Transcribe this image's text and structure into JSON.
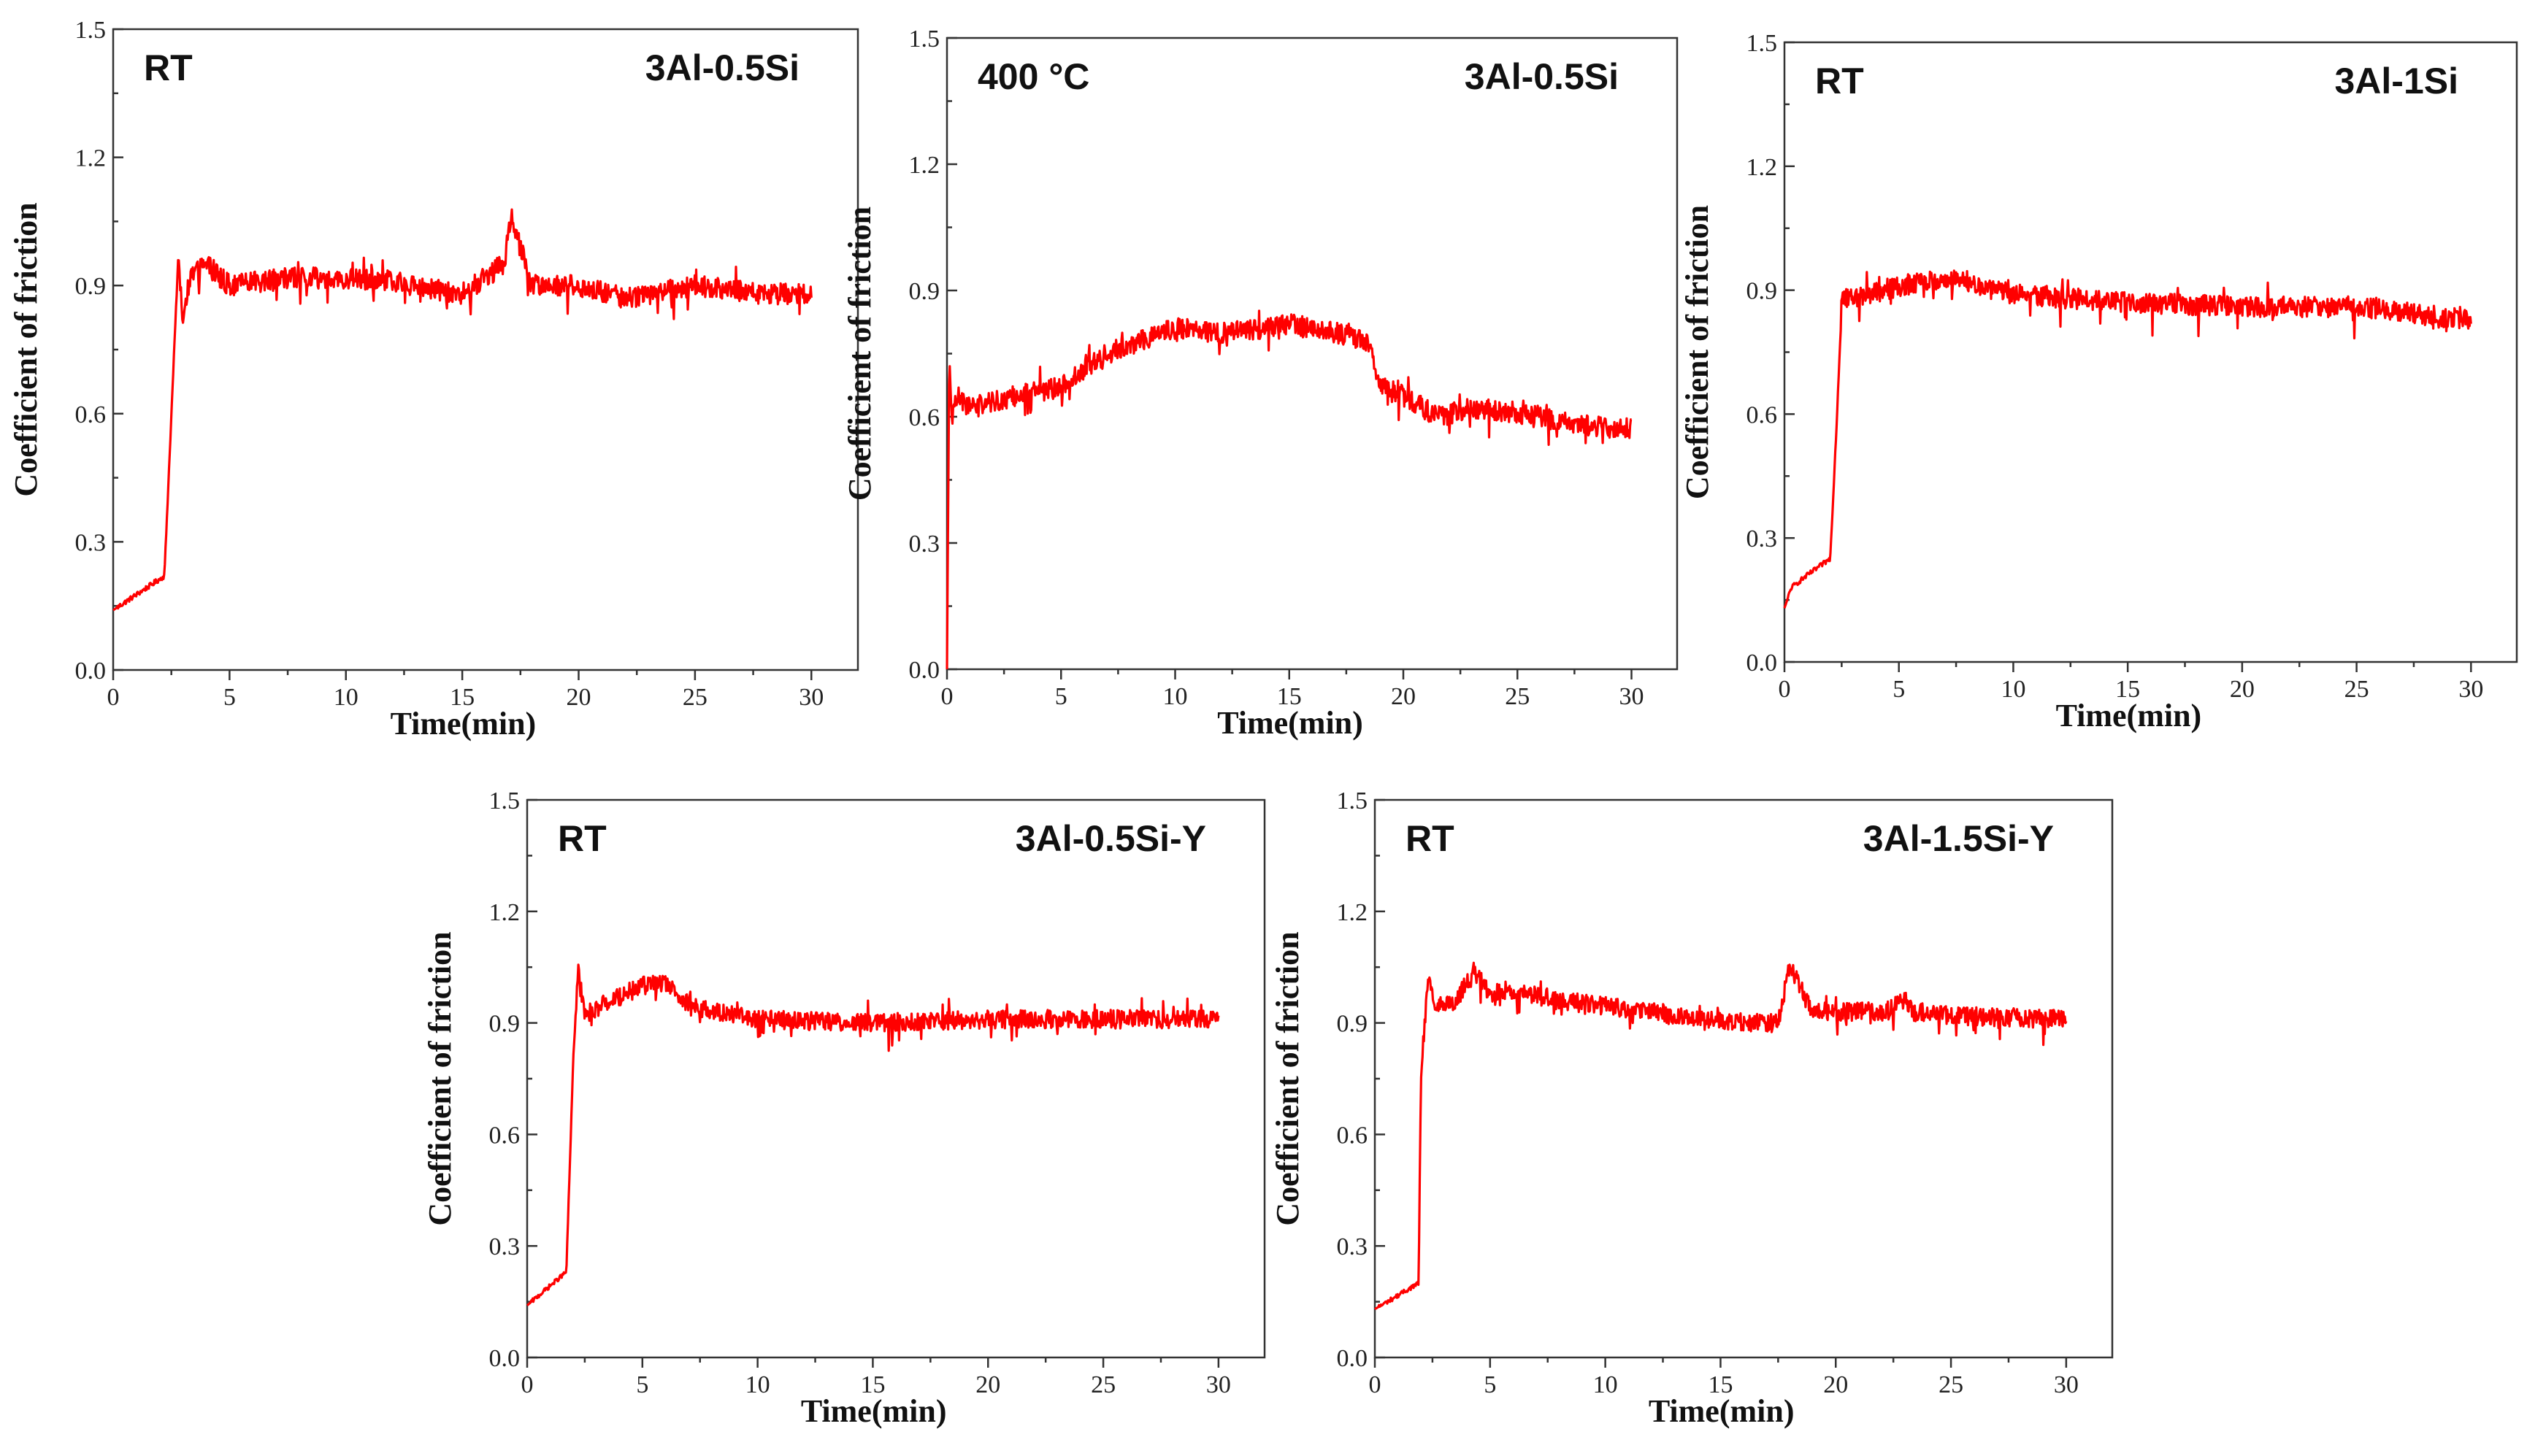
{
  "chart_data": [
    {
      "type": "line",
      "title": "",
      "left_label": "RT",
      "right_label": "3Al-0.5Si",
      "xlabel": "Time(min)",
      "ylabel": "Coefficient of friction",
      "xlim": [
        0,
        32
      ],
      "ylim": [
        0,
        1.5
      ],
      "xticks": [
        0,
        5,
        10,
        15,
        20,
        25,
        30
      ],
      "yticks": [
        0.0,
        0.3,
        0.6,
        0.9,
        1.2,
        1.5
      ],
      "xtick_labels": [
        "0",
        "5",
        "10",
        "15",
        "20",
        "25",
        "30"
      ],
      "ytick_labels": [
        "0.0",
        "0.3",
        "0.6",
        "0.9",
        "1.2",
        "1.5"
      ],
      "series": [
        {
          "name": "3Al-0.5Si RT",
          "color": "#ff0000",
          "x": [
            0,
            2.2,
            2.8,
            3.0,
            3.3,
            4.0,
            5.0,
            8.0,
            12.0,
            15.0,
            16.8,
            17.1,
            18.0,
            20.0,
            22.0,
            25.0,
            28.0,
            30.0
          ],
          "y": [
            0.14,
            0.22,
            0.97,
            0.82,
            0.92,
            0.95,
            0.9,
            0.92,
            0.91,
            0.88,
            0.95,
            1.06,
            0.9,
            0.9,
            0.87,
            0.9,
            0.88,
            0.88
          ]
        }
      ]
    },
    {
      "type": "line",
      "title": "",
      "left_label": "400 °C",
      "right_label": "3Al-0.5Si",
      "xlabel": "Time(min)",
      "ylabel": "Coefficient of friction",
      "xlim": [
        0,
        32
      ],
      "ylim": [
        0,
        1.5
      ],
      "xticks": [
        0,
        5,
        10,
        15,
        20,
        25,
        30
      ],
      "yticks": [
        0.0,
        0.3,
        0.6,
        0.9,
        1.2,
        1.5
      ],
      "xtick_labels": [
        "0",
        "5",
        "10",
        "15",
        "20",
        "25",
        "30"
      ],
      "ytick_labels": [
        "0.0",
        "0.3",
        "0.6",
        "0.9",
        "1.2",
        "1.5"
      ],
      "series": [
        {
          "name": "3Al-0.5Si 400C",
          "color": "#ff0000",
          "x": [
            0,
            0.1,
            0.2,
            0.5,
            1.0,
            3.0,
            5.0,
            7.0,
            9.0,
            10.0,
            12.0,
            14.0,
            15.0,
            17.0,
            18.5,
            19.0,
            20.0,
            21.5,
            23.0,
            25.0,
            28.0,
            30.0
          ],
          "y": [
            0.0,
            0.75,
            0.6,
            0.65,
            0.62,
            0.65,
            0.67,
            0.75,
            0.79,
            0.81,
            0.8,
            0.81,
            0.82,
            0.8,
            0.78,
            0.67,
            0.65,
            0.6,
            0.62,
            0.61,
            0.58,
            0.57
          ]
        }
      ]
    },
    {
      "type": "line",
      "title": "",
      "left_label": "RT",
      "right_label": "3Al-1Si",
      "xlabel": "Time(min)",
      "ylabel": "Coefficient of friction",
      "xlim": [
        0,
        32
      ],
      "ylim": [
        0,
        1.5
      ],
      "xticks": [
        0,
        5,
        10,
        15,
        20,
        25,
        30
      ],
      "yticks": [
        0.0,
        0.3,
        0.6,
        0.9,
        1.2,
        1.5
      ],
      "xtick_labels": [
        "0",
        "5",
        "10",
        "15",
        "20",
        "25",
        "30"
      ],
      "ytick_labels": [
        "0.0",
        "0.3",
        "0.6",
        "0.9",
        "1.2",
        "1.5"
      ],
      "series": [
        {
          "name": "3Al-1Si RT",
          "color": "#ff0000",
          "x": [
            0,
            0.3,
            1.0,
            2.0,
            2.3,
            2.5,
            3.0,
            5.0,
            7.0,
            10.0,
            15.0,
            20.0,
            25.0,
            28.0,
            30.0
          ],
          "y": [
            0.13,
            0.18,
            0.21,
            0.25,
            0.6,
            0.88,
            0.88,
            0.91,
            0.93,
            0.89,
            0.87,
            0.86,
            0.86,
            0.84,
            0.83
          ]
        }
      ]
    },
    {
      "type": "line",
      "title": "",
      "left_label": "RT",
      "right_label": "3Al-0.5Si-Y",
      "xlabel": "Time(min)",
      "ylabel": "Coefficient of friction",
      "xlim": [
        0,
        32
      ],
      "ylim": [
        0,
        1.5
      ],
      "xticks": [
        0,
        5,
        10,
        15,
        20,
        25,
        30
      ],
      "yticks": [
        0.0,
        0.3,
        0.6,
        0.9,
        1.2,
        1.5
      ],
      "xtick_labels": [
        "0",
        "5",
        "10",
        "15",
        "20",
        "25",
        "30"
      ],
      "ytick_labels": [
        "0.0",
        "0.3",
        "0.6",
        "0.9",
        "1.2",
        "1.5"
      ],
      "series": [
        {
          "name": "3Al-0.5Si-Y RT",
          "color": "#ff0000",
          "x": [
            0,
            1.7,
            2.0,
            2.2,
            2.5,
            3.0,
            4.0,
            5.0,
            6.0,
            7.0,
            8.0,
            10.0,
            15.0,
            20.0,
            25.0,
            30.0
          ],
          "y": [
            0.14,
            0.23,
            0.8,
            1.04,
            0.92,
            0.94,
            0.97,
            1.0,
            1.01,
            0.95,
            0.93,
            0.91,
            0.9,
            0.91,
            0.91,
            0.91
          ]
        }
      ]
    },
    {
      "type": "line",
      "title": "",
      "left_label": "RT",
      "right_label": "3Al-1.5Si-Y",
      "xlabel": "Time(min)",
      "ylabel": "Coefficient of friction",
      "xlim": [
        0,
        32
      ],
      "ylim": [
        0,
        1.5
      ],
      "xticks": [
        0,
        5,
        10,
        15,
        20,
        25,
        30
      ],
      "yticks": [
        0.0,
        0.3,
        0.6,
        0.9,
        1.2,
        1.5
      ],
      "xtick_labels": [
        "0",
        "5",
        "10",
        "15",
        "20",
        "25",
        "30"
      ],
      "ytick_labels": [
        "0.0",
        "0.3",
        "0.6",
        "0.9",
        "1.2",
        "1.5"
      ],
      "series": [
        {
          "name": "3Al-1.5Si-Y RT",
          "color": "#ff0000",
          "x": [
            0,
            1.9,
            2.0,
            2.3,
            2.6,
            3.5,
            4.3,
            5.0,
            6.0,
            8.0,
            12.0,
            16.0,
            17.5,
            18.0,
            19.0,
            22.0,
            23.0,
            23.4,
            25.0,
            30.0
          ],
          "y": [
            0.13,
            0.2,
            0.75,
            1.02,
            0.95,
            0.96,
            1.04,
            0.98,
            0.99,
            0.96,
            0.93,
            0.9,
            0.9,
            1.05,
            0.93,
            0.93,
            0.96,
            0.93,
            0.92,
            0.91
          ]
        }
      ]
    }
  ]
}
